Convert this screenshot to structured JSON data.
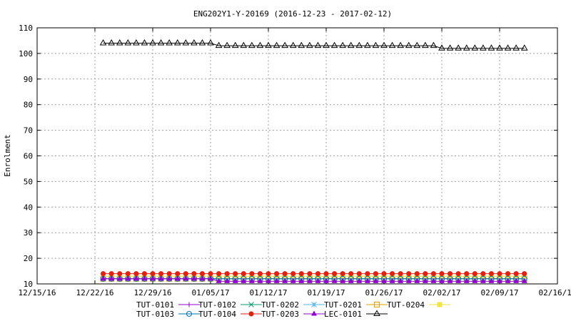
{
  "chart_data": {
    "type": "line",
    "title": "ENG202Y1-Y-20169 (2016-12-23 - 2017-02-12)",
    "xlabel": "",
    "ylabel": "Enrolment",
    "xlim": [
      "2016-12-15",
      "2017-02-16"
    ],
    "ylim": [
      10,
      110
    ],
    "x_ticks": [
      "12/15/16",
      "12/22/16",
      "12/29/16",
      "01/05/17",
      "01/12/17",
      "01/19/17",
      "01/26/17",
      "02/02/17",
      "02/09/17",
      "02/16/17"
    ],
    "y_ticks": [
      "10",
      "20",
      "30",
      "40",
      "50",
      "60",
      "70",
      "80",
      "90",
      "100",
      "110"
    ],
    "grid": true,
    "legend_position": "bottom",
    "x_range": {
      "start": "2016-12-23",
      "end": "2017-02-12",
      "step_days": 1
    },
    "series": [
      {
        "name": "TUT-0101",
        "color": "#9400d3",
        "marker": "plus",
        "segments": [
          {
            "from": "2016-12-23",
            "to": "2017-02-12",
            "value": 12
          }
        ]
      },
      {
        "name": "TUT-0102",
        "color": "#009e73",
        "marker": "cross",
        "segments": [
          {
            "from": "2016-12-23",
            "to": "2017-02-12",
            "value": 12
          }
        ]
      },
      {
        "name": "TUT-0202",
        "color": "#56b4e9",
        "marker": "star",
        "segments": [
          {
            "from": "2016-12-23",
            "to": "2017-02-12",
            "value": 12
          }
        ]
      },
      {
        "name": "TUT-0201",
        "color": "#e69f00",
        "marker": "square",
        "segments": [
          {
            "from": "2016-12-23",
            "to": "2017-02-12",
            "value": 12
          }
        ]
      },
      {
        "name": "TUT-0204",
        "color": "#f0e442",
        "marker": "filled-square",
        "segments": [
          {
            "from": "2016-12-23",
            "to": "2017-02-12",
            "value": 13
          }
        ]
      },
      {
        "name": "TUT-0103",
        "color": "#0072b2",
        "marker": "circle",
        "segments": [
          {
            "from": "2016-12-23",
            "to": "2017-02-12",
            "value": 12
          }
        ]
      },
      {
        "name": "TUT-0104",
        "color": "#e51e10",
        "marker": "filled-circle",
        "segments": [
          {
            "from": "2016-12-23",
            "to": "2017-02-12",
            "value": 14
          }
        ]
      },
      {
        "name": "TUT-0203",
        "color": "#9400d3",
        "marker": "filled-triangle",
        "segments": [
          {
            "from": "2016-12-23",
            "to": "2017-01-05",
            "value": 12
          },
          {
            "from": "2017-01-06",
            "to": "2017-02-12",
            "value": 11
          }
        ]
      },
      {
        "name": "LEC-0101",
        "color": "#000000",
        "marker": "triangle",
        "segments": [
          {
            "from": "2016-12-23",
            "to": "2017-01-05",
            "value": 104
          },
          {
            "from": "2017-01-06",
            "to": "2017-02-01",
            "value": 103
          },
          {
            "from": "2017-02-02",
            "to": "2017-02-12",
            "value": 102
          }
        ]
      }
    ]
  }
}
